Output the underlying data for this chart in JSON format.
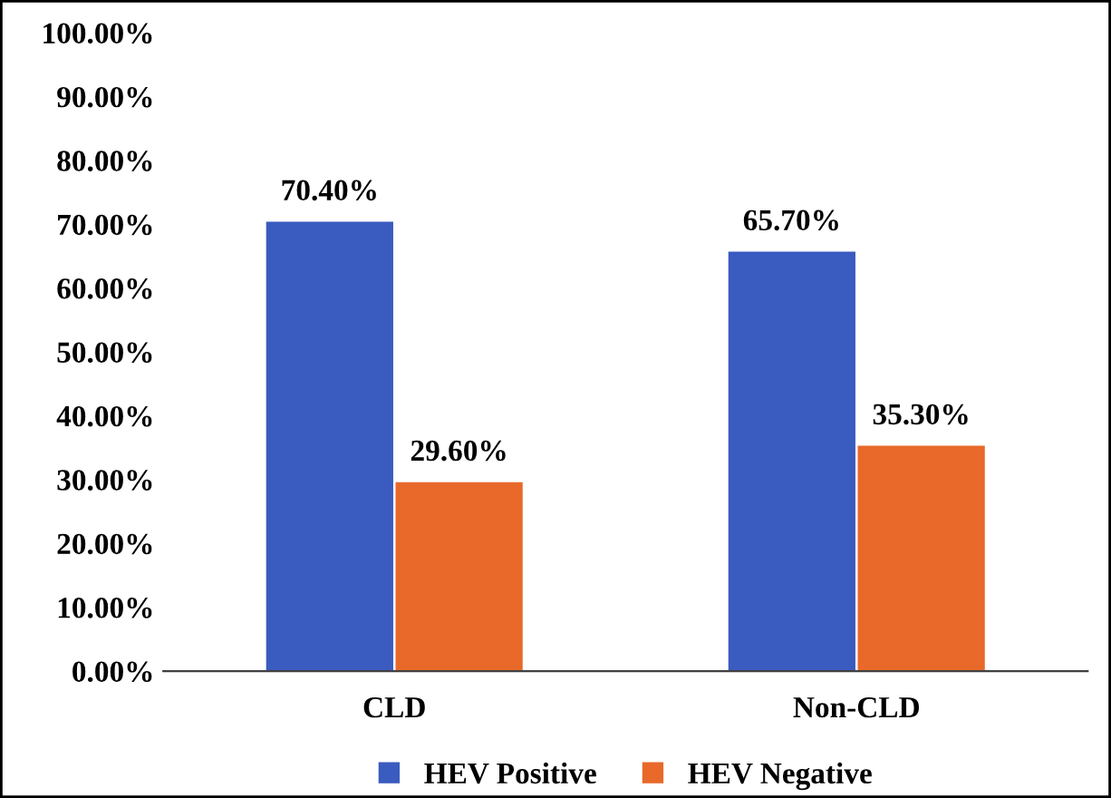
{
  "chart_data": {
    "type": "bar",
    "categories": [
      "CLD",
      "Non-CLD"
    ],
    "series": [
      {
        "name": "HEV Positive",
        "color": "#3a5bbf",
        "values": [
          70.4,
          65.7
        ],
        "value_labels": [
          "70.40%",
          "65.70%"
        ]
      },
      {
        "name": "HEV Negative",
        "color": "#e8692a",
        "values": [
          29.6,
          35.3
        ],
        "value_labels": [
          "29.60%",
          "35.30%"
        ]
      }
    ],
    "ylim": [
      0,
      100
    ],
    "yticks": [
      {
        "value": 0,
        "label": "0.00%"
      },
      {
        "value": 10,
        "label": "10.00%"
      },
      {
        "value": 20,
        "label": "20.00%"
      },
      {
        "value": 30,
        "label": "30.00%"
      },
      {
        "value": 40,
        "label": "40.00%"
      },
      {
        "value": 50,
        "label": "50.00%"
      },
      {
        "value": 60,
        "label": "60.00%"
      },
      {
        "value": 70,
        "label": "70.00%"
      },
      {
        "value": 80,
        "label": "80.00%"
      },
      {
        "value": 90,
        "label": "90.00%"
      },
      {
        "value": 100,
        "label": "100.00%"
      }
    ],
    "grid": false,
    "legend": "bottom"
  }
}
